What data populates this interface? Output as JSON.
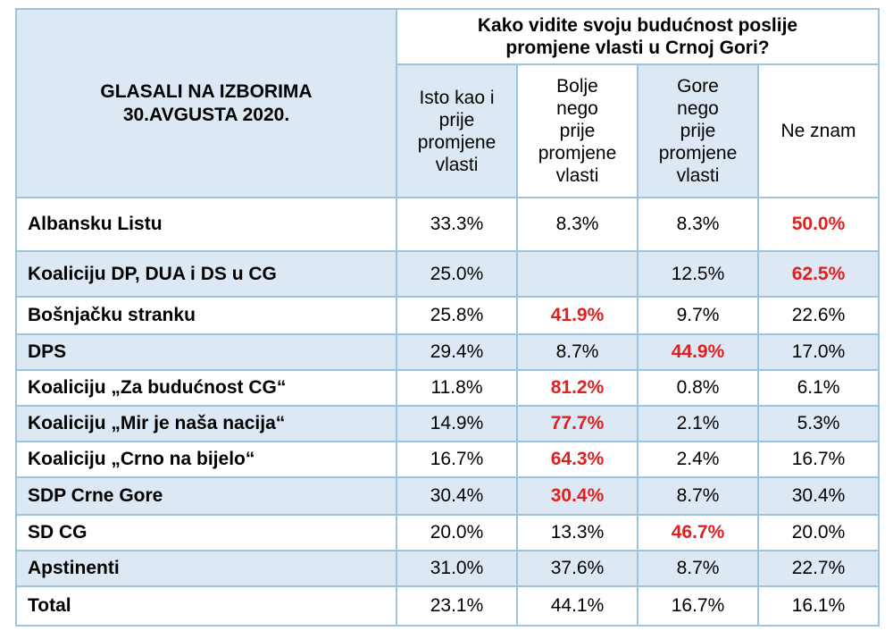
{
  "chart_data": {
    "type": "table",
    "row_header_title": "GLASALI NA IZBORIMA 30.AVGUSTA 2020.",
    "question": "Kako vidite svoju budućnost poslije promjene vlasti u Crnoj Gori?",
    "columns": [
      "Isto kao i prije promjene vlasti",
      "Bolje nego prije promjene vlasti",
      "Gore nego prije promjene vlasti",
      "Ne znam"
    ],
    "rows": [
      {
        "label": "Albansku Listu",
        "values": [
          "33.3%",
          "8.3%",
          "8.3%",
          "50.0%"
        ],
        "highlight": [
          false,
          false,
          false,
          true
        ]
      },
      {
        "label": "Koaliciju DP, DUA i DS u CG",
        "values": [
          "25.0%",
          "",
          "12.5%",
          "62.5%"
        ],
        "highlight": [
          false,
          false,
          false,
          true
        ]
      },
      {
        "label": "Bošnjačku stranku",
        "values": [
          "25.8%",
          "41.9%",
          "9.7%",
          "22.6%"
        ],
        "highlight": [
          false,
          true,
          false,
          false
        ]
      },
      {
        "label": "DPS",
        "values": [
          "29.4%",
          "8.7%",
          "44.9%",
          "17.0%"
        ],
        "highlight": [
          false,
          false,
          true,
          false
        ]
      },
      {
        "label": "Koaliciju „Za budućnost CG“",
        "values": [
          "11.8%",
          "81.2%",
          "0.8%",
          "6.1%"
        ],
        "highlight": [
          false,
          true,
          false,
          false
        ]
      },
      {
        "label": "Koaliciju „Mir je naša nacija“",
        "values": [
          "14.9%",
          "77.7%",
          "2.1%",
          "5.3%"
        ],
        "highlight": [
          false,
          true,
          false,
          false
        ]
      },
      {
        "label": "Koaliciju „Crno na bijelo“",
        "values": [
          "16.7%",
          "64.3%",
          "2.4%",
          "16.7%"
        ],
        "highlight": [
          false,
          true,
          false,
          false
        ]
      },
      {
        "label": "SDP Crne Gore",
        "values": [
          "30.4%",
          "30.4%",
          "8.7%",
          "30.4%"
        ],
        "highlight": [
          false,
          true,
          false,
          false
        ]
      },
      {
        "label": "SD CG",
        "values": [
          "20.0%",
          "13.3%",
          "46.7%",
          "20.0%"
        ],
        "highlight": [
          false,
          false,
          true,
          false
        ]
      },
      {
        "label": "Apstinenti",
        "values": [
          "31.0%",
          "37.6%",
          "8.7%",
          "22.7%"
        ],
        "highlight": [
          false,
          false,
          false,
          false
        ]
      },
      {
        "label": "Total",
        "values": [
          "23.1%",
          "44.1%",
          "16.7%",
          "16.1%"
        ],
        "highlight": [
          false,
          false,
          false,
          false
        ]
      }
    ],
    "colors": {
      "highlight": "#e02020",
      "grid": "#9ec3df",
      "shade": "#dce8f3"
    }
  }
}
